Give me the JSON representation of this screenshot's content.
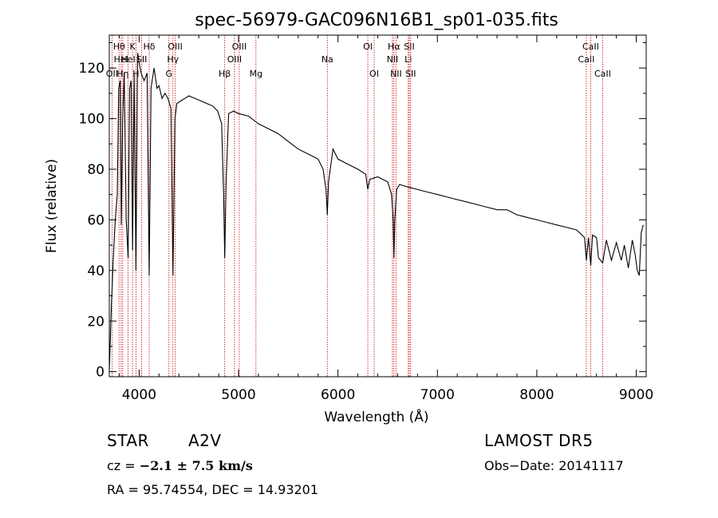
{
  "chart_data": {
    "type": "line",
    "title": "spec-56979-GAC096N16B1_sp01-035.fits",
    "xlabel": "Wavelength (Å)",
    "ylabel": "Flux (relative)",
    "xlim": [
      3700,
      9100
    ],
    "ylim": [
      -2,
      133
    ],
    "xticks": [
      4000,
      5000,
      6000,
      7000,
      8000,
      9000
    ],
    "yticks": [
      0,
      20,
      40,
      60,
      80,
      100,
      120
    ],
    "grid": false,
    "series": [
      {
        "x": [
          3700,
          3720,
          3740,
          3760,
          3780,
          3795,
          3810,
          3820,
          3835,
          3850,
          3870,
          3889,
          3905,
          3920,
          3934,
          3950,
          3968,
          3985,
          4000,
          4020,
          4050,
          4080,
          4101,
          4120,
          4150,
          4180,
          4200,
          4230,
          4260,
          4290,
          4320,
          4340,
          4360,
          4380,
          4420,
          4460,
          4500,
          4560,
          4620,
          4680,
          4740,
          4790,
          4830,
          4850,
          4861,
          4875,
          4900,
          4950,
          5000,
          5100,
          5200,
          5300,
          5400,
          5500,
          5600,
          5700,
          5800,
          5850,
          5880,
          5893,
          5905,
          5950,
          6000,
          6100,
          6200,
          6280,
          6300,
          6320,
          6400,
          6450,
          6500,
          6540,
          6555,
          6563,
          6572,
          6590,
          6620,
          6700,
          6800,
          6900,
          7000,
          7100,
          7200,
          7300,
          7400,
          7500,
          7600,
          7700,
          7800,
          7900,
          8000,
          8100,
          8200,
          8300,
          8400,
          8480,
          8498,
          8520,
          8542,
          8560,
          8600,
          8620,
          8662,
          8700,
          8750,
          8800,
          8850,
          8880,
          8920,
          8960,
          8990,
          9010,
          9030,
          9050,
          9070
        ],
        "y": [
          0,
          25,
          45,
          60,
          70,
          112,
          115,
          58,
          100,
          118,
          60,
          45,
          112,
          115,
          48,
          118,
          40,
          126,
          122,
          118,
          115,
          118,
          38,
          112,
          120,
          112,
          113,
          108,
          110,
          108,
          104,
          38,
          100,
          106,
          107,
          108,
          109,
          108,
          107,
          106,
          105,
          103,
          98,
          70,
          45,
          75,
          102,
          103,
          102,
          101,
          98,
          96,
          94,
          91,
          88,
          86,
          84,
          80,
          72,
          62,
          75,
          88,
          84,
          82,
          80,
          78,
          72,
          76,
          77,
          76,
          75,
          70,
          60,
          45,
          60,
          72,
          74,
          73,
          72,
          71,
          70,
          69,
          68,
          67,
          66,
          65,
          64,
          64,
          62,
          61,
          60,
          59,
          58,
          57,
          56,
          53,
          44,
          53,
          42,
          54,
          53,
          45,
          43,
          52,
          44,
          51,
          44,
          50,
          41,
          52,
          46,
          40,
          38,
          55,
          58
        ]
      }
    ],
    "lines": [
      {
        "w": 3727,
        "labels": [
          "OII"
        ],
        "row": 3
      },
      {
        "w": 3798,
        "labels": [
          "Hθ"
        ],
        "row": 1
      },
      {
        "w": 3819,
        "labels": [
          "HeI"
        ],
        "row": 2
      },
      {
        "w": 3835,
        "labels": [
          "Hη"
        ],
        "row": 3
      },
      {
        "w": 3889,
        "labels": [
          "HeI"
        ],
        "row": 2
      },
      {
        "w": 3934,
        "labels": [
          "K"
        ],
        "row": 1
      },
      {
        "w": 3968,
        "labels": [
          "H"
        ],
        "row": 3
      },
      {
        "w": 4026,
        "labels": [
          "SII"
        ],
        "row": 2
      },
      {
        "w": 4101,
        "labels": [
          "Hδ"
        ],
        "row": 1
      },
      {
        "w": 4300,
        "labels": [
          "G"
        ],
        "row": 3
      },
      {
        "w": 4340,
        "labels": [
          "Hγ"
        ],
        "row": 2
      },
      {
        "w": 4363,
        "labels": [
          "OIII"
        ],
        "row": 1
      },
      {
        "w": 4861,
        "labels": [
          "Hβ"
        ],
        "row": 3
      },
      {
        "w": 4959,
        "labels": [
          "OIII"
        ],
        "row": 2
      },
      {
        "w": 5007,
        "labels": [
          "OIII"
        ],
        "row": 1
      },
      {
        "w": 5175,
        "labels": [
          "Mg"
        ],
        "row": 3
      },
      {
        "w": 5893,
        "labels": [
          "Na"
        ],
        "row": 2
      },
      {
        "w": 6300,
        "labels": [
          "OI"
        ],
        "row": 1
      },
      {
        "w": 6364,
        "labels": [
          "OI"
        ],
        "row": 3
      },
      {
        "w": 6548,
        "labels": [
          "NII"
        ],
        "row": 2
      },
      {
        "w": 6563,
        "labels": [
          "Hα"
        ],
        "row": 1
      },
      {
        "w": 6584,
        "labels": [
          "NII"
        ],
        "row": 3
      },
      {
        "w": 6707,
        "labels": [
          "Li"
        ],
        "row": 2
      },
      {
        "w": 6717,
        "labels": [
          "SII"
        ],
        "row": 1
      },
      {
        "w": 6731,
        "labels": [
          "SII"
        ],
        "row": 3
      },
      {
        "w": 8498,
        "labels": [
          "CaII"
        ],
        "row": 2
      },
      {
        "w": 8542,
        "labels": [
          "CaII"
        ],
        "row": 1
      },
      {
        "w": 8662,
        "labels": [
          "CaII"
        ],
        "row": 3
      }
    ]
  },
  "footer": {
    "class_label": "STAR",
    "subclass": "A2V",
    "survey": "LAMOST DR5",
    "cz_prefix": "cz = ",
    "cz_value": "−2.1 ± 7.5 km/s",
    "obs_date": "Obs−Date: 20141117",
    "coords": "RA =  95.74554, DEC =  14.93201"
  }
}
